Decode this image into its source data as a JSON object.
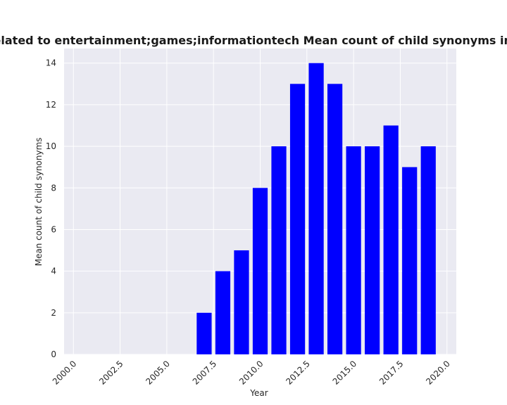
{
  "chart_data": {
    "type": "bar",
    "title": "Mean count of child synonyms for companies related to entertainment;games;informationtech Mean count of child synonyms in privacy policies",
    "visible_title_fragment": "es are related to entertainment;games;informationtech Mean count of child synonyms in privacy",
    "xlabel": "Year",
    "ylabel": "Mean count of child synonyms",
    "x": [
      2007,
      2008,
      2009,
      2010,
      2011,
      2012,
      2013,
      2014,
      2015,
      2016,
      2017,
      2018,
      2019
    ],
    "values": [
      2,
      4,
      5,
      8,
      10,
      13,
      14,
      13,
      10,
      10,
      11,
      9,
      10
    ],
    "xlim": [
      1999.5,
      2020.5
    ],
    "ylim": [
      0,
      14.7
    ],
    "xticks": [
      2000.0,
      2002.5,
      2005.0,
      2007.5,
      2010.0,
      2012.5,
      2015.0,
      2017.5,
      2020.0
    ],
    "xtick_labels": [
      "2000.0",
      "2002.5",
      "2005.0",
      "2007.5",
      "2010.0",
      "2012.5",
      "2015.0",
      "2017.5",
      "2020.0"
    ],
    "yticks": [
      0,
      2,
      4,
      6,
      8,
      10,
      12,
      14
    ],
    "ytick_labels": [
      "0",
      "2",
      "4",
      "6",
      "8",
      "10",
      "12",
      "14"
    ],
    "bar_width": 0.8,
    "bar_color": "#0000ff",
    "background_color": "#eaeaf2",
    "grid": true,
    "grid_color": "#ffffff"
  }
}
